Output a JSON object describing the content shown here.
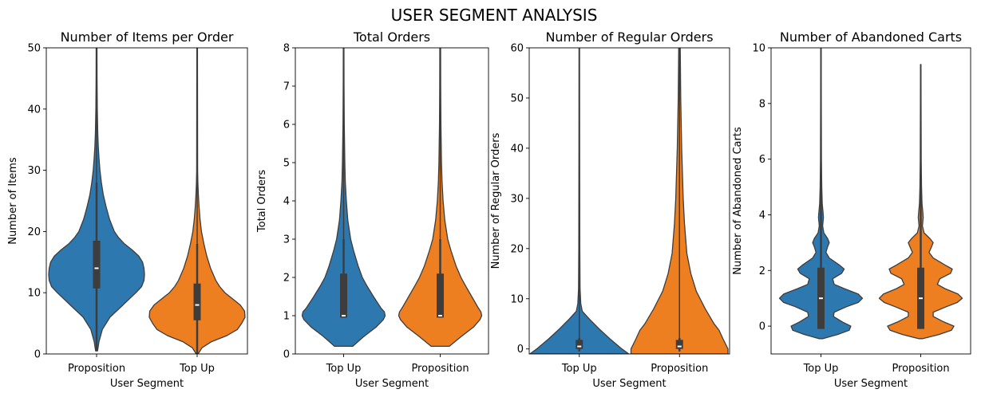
{
  "figure": {
    "title": "USER SEGMENT ANALYSIS"
  },
  "colors": {
    "blue": "#2e78b0",
    "orange": "#ee7f21",
    "edge": "#3d3d3d",
    "box": "#3d3d3d",
    "median": "#ffffff"
  },
  "chart_data": [
    {
      "type": "violin",
      "title": "Number of Items per Order",
      "xlabel": "User Segment",
      "ylabel": "Number of Items",
      "ylim": [
        0,
        50
      ],
      "yticks": [
        0,
        10,
        20,
        30,
        40,
        50
      ],
      "categories": [
        "Proposition",
        "Top Up"
      ],
      "series": [
        {
          "category": "Proposition",
          "color": "blue",
          "q1": 10.7,
          "median": 14,
          "q3": 18.5,
          "whisker_low": 0.5,
          "whisker_high": 28,
          "line_top": 50,
          "profile": [
            [
              0.5,
              0.02
            ],
            [
              2,
              0.05
            ],
            [
              4,
              0.12
            ],
            [
              6,
              0.28
            ],
            [
              8,
              0.55
            ],
            [
              10,
              0.82
            ],
            [
              11,
              0.94
            ],
            [
              12,
              0.99
            ],
            [
              13,
              1.0
            ],
            [
              14,
              0.99
            ],
            [
              15,
              0.96
            ],
            [
              16,
              0.88
            ],
            [
              17,
              0.74
            ],
            [
              18,
              0.58
            ],
            [
              19,
              0.46
            ],
            [
              20,
              0.37
            ],
            [
              22,
              0.27
            ],
            [
              24,
              0.2
            ],
            [
              26,
              0.14
            ],
            [
              28,
              0.1
            ],
            [
              30,
              0.07
            ],
            [
              32,
              0.05
            ],
            [
              34,
              0.035
            ],
            [
              36,
              0.025
            ],
            [
              40,
              0.015
            ],
            [
              45,
              0.01
            ],
            [
              50,
              0.008
            ]
          ]
        },
        {
          "category": "Top Up",
          "color": "orange",
          "q1": 5.5,
          "median": 8,
          "q3": 11.5,
          "whisker_low": 0,
          "whisker_high": 18,
          "line_top": 50,
          "profile": [
            [
              0,
              0.02
            ],
            [
              1,
              0.1
            ],
            [
              2,
              0.3
            ],
            [
              3,
              0.62
            ],
            [
              4,
              0.84
            ],
            [
              5,
              0.93
            ],
            [
              6,
              1.0
            ],
            [
              7,
              0.99
            ],
            [
              8,
              0.9
            ],
            [
              9,
              0.74
            ],
            [
              10,
              0.58
            ],
            [
              11,
              0.47
            ],
            [
              12,
              0.39
            ],
            [
              14,
              0.28
            ],
            [
              16,
              0.2
            ],
            [
              18,
              0.14
            ],
            [
              20,
              0.09
            ],
            [
              22,
              0.06
            ],
            [
              24,
              0.04
            ],
            [
              26,
              0.025
            ],
            [
              28,
              0.015
            ],
            [
              30,
              0.01
            ],
            [
              40,
              0.008
            ],
            [
              50,
              0.006
            ]
          ]
        }
      ]
    },
    {
      "type": "violin",
      "title": "Total Orders",
      "xlabel": "User Segment",
      "ylabel": "Total Orders",
      "ylim": [
        0,
        8
      ],
      "yticks": [
        0,
        1,
        2,
        3,
        4,
        5,
        6,
        7,
        8
      ],
      "categories": [
        "Top Up",
        "Proposition"
      ],
      "series": [
        {
          "category": "Top Up",
          "color": "blue",
          "q1": 0.95,
          "median": 1,
          "q3": 2.1,
          "whisker_low": 0.95,
          "whisker_high": 3,
          "line_top": 8,
          "profile": [
            [
              0.2,
              0.22
            ],
            [
              0.45,
              0.48
            ],
            [
              0.7,
              0.78
            ],
            [
              0.9,
              0.96
            ],
            [
              1.0,
              1.0
            ],
            [
              1.1,
              0.98
            ],
            [
              1.2,
              0.9
            ],
            [
              1.5,
              0.72
            ],
            [
              1.8,
              0.55
            ],
            [
              2.0,
              0.45
            ],
            [
              2.3,
              0.35
            ],
            [
              2.7,
              0.24
            ],
            [
              3.0,
              0.17
            ],
            [
              3.5,
              0.1
            ],
            [
              4.0,
              0.065
            ],
            [
              4.5,
              0.04
            ],
            [
              5.0,
              0.028
            ],
            [
              6.0,
              0.015
            ],
            [
              7.0,
              0.01
            ],
            [
              8.0,
              0.008
            ]
          ]
        },
        {
          "category": "Proposition",
          "color": "orange",
          "q1": 0.95,
          "median": 1,
          "q3": 2.1,
          "whisker_low": 0.95,
          "whisker_high": 3,
          "line_top": 8,
          "profile": [
            [
              0.2,
              0.22
            ],
            [
              0.45,
              0.5
            ],
            [
              0.7,
              0.8
            ],
            [
              0.9,
              0.96
            ],
            [
              1.0,
              1.0
            ],
            [
              1.1,
              0.98
            ],
            [
              1.2,
              0.92
            ],
            [
              1.5,
              0.76
            ],
            [
              1.8,
              0.6
            ],
            [
              2.0,
              0.5
            ],
            [
              2.3,
              0.38
            ],
            [
              2.7,
              0.26
            ],
            [
              3.0,
              0.18
            ],
            [
              3.5,
              0.11
            ],
            [
              4.0,
              0.07
            ],
            [
              4.5,
              0.045
            ],
            [
              5.0,
              0.03
            ],
            [
              6.0,
              0.018
            ],
            [
              7.0,
              0.012
            ],
            [
              8.0,
              0.009
            ]
          ]
        }
      ]
    },
    {
      "type": "violin",
      "title": "Number of Regular Orders",
      "xlabel": "User Segment",
      "ylabel": "Number of Regular Orders",
      "ylim": [
        -1,
        60
      ],
      "yticks": [
        0,
        10,
        20,
        30,
        40,
        50,
        60
      ],
      "categories": [
        "Top Up",
        "Proposition"
      ],
      "series": [
        {
          "category": "Top Up",
          "color": "blue",
          "q1": 0,
          "median": 0.5,
          "q3": 1.8,
          "whisker_low": -0.5,
          "whisker_high": 2.2,
          "line_top": 60,
          "profile": [
            [
              -1,
              1.0
            ],
            [
              0,
              0.86
            ],
            [
              2,
              0.62
            ],
            [
              4,
              0.4
            ],
            [
              6,
              0.2
            ],
            [
              7.5,
              0.06
            ],
            [
              9,
              0.03
            ],
            [
              12,
              0.015
            ],
            [
              20,
              0.01
            ],
            [
              40,
              0.008
            ],
            [
              60,
              0.006
            ]
          ]
        },
        {
          "category": "Proposition",
          "color": "orange",
          "q1": 0,
          "median": 0.5,
          "q3": 1.8,
          "whisker_low": -0.5,
          "whisker_high": 2.2,
          "line_top": 60,
          "profile": [
            [
              -1,
              0.98
            ],
            [
              0,
              0.98
            ],
            [
              2,
              0.88
            ],
            [
              3.7,
              0.8
            ],
            [
              5,
              0.7
            ],
            [
              8,
              0.52
            ],
            [
              11.5,
              0.34
            ],
            [
              15,
              0.23
            ],
            [
              19,
              0.15
            ],
            [
              25,
              0.1
            ],
            [
              30,
              0.075
            ],
            [
              40,
              0.045
            ],
            [
              50,
              0.025
            ],
            [
              60,
              0.015
            ]
          ]
        }
      ]
    },
    {
      "type": "violin",
      "title": "Number of Abandoned Carts",
      "xlabel": "User Segment",
      "ylabel": "Number of Abandoned Carts",
      "ylim": [
        -1,
        10
      ],
      "yticks": [
        0,
        2,
        4,
        6,
        8,
        10
      ],
      "categories": [
        "Top Up",
        "Proposition"
      ],
      "series": [
        {
          "category": "Top Up",
          "color": "blue",
          "q1": -0.1,
          "median": 1,
          "q3": 2.1,
          "whisker_low": -0.1,
          "whisker_high": 5,
          "line_top": 10,
          "profile": [
            [
              -0.45,
              0.05
            ],
            [
              -0.3,
              0.4
            ],
            [
              -0.15,
              0.68
            ],
            [
              0.0,
              0.72
            ],
            [
              0.15,
              0.52
            ],
            [
              0.35,
              0.3
            ],
            [
              0.5,
              0.32
            ],
            [
              0.7,
              0.62
            ],
            [
              0.85,
              0.9
            ],
            [
              1.0,
              1.0
            ],
            [
              1.15,
              0.9
            ],
            [
              1.35,
              0.56
            ],
            [
              1.5,
              0.32
            ],
            [
              1.7,
              0.28
            ],
            [
              1.9,
              0.5
            ],
            [
              2.05,
              0.56
            ],
            [
              2.2,
              0.44
            ],
            [
              2.45,
              0.2
            ],
            [
              2.65,
              0.12
            ],
            [
              2.85,
              0.16
            ],
            [
              3.0,
              0.2
            ],
            [
              3.15,
              0.16
            ],
            [
              3.35,
              0.07
            ],
            [
              3.6,
              0.04
            ],
            [
              3.9,
              0.06
            ],
            [
              4.1,
              0.05
            ],
            [
              4.4,
              0.03
            ],
            [
              5.0,
              0.02
            ],
            [
              6.0,
              0.012
            ],
            [
              8.0,
              0.008
            ],
            [
              10.0,
              0.006
            ]
          ]
        },
        {
          "category": "Proposition",
          "color": "orange",
          "q1": -0.1,
          "median": 1,
          "q3": 2.1,
          "whisker_low": -0.1,
          "whisker_high": 5.1,
          "line_top": 9.4,
          "profile": [
            [
              -0.45,
              0.05
            ],
            [
              -0.3,
              0.44
            ],
            [
              -0.15,
              0.74
            ],
            [
              0.0,
              0.8
            ],
            [
              0.15,
              0.56
            ],
            [
              0.35,
              0.3
            ],
            [
              0.5,
              0.3
            ],
            [
              0.7,
              0.62
            ],
            [
              0.85,
              0.88
            ],
            [
              1.0,
              1.0
            ],
            [
              1.15,
              0.9
            ],
            [
              1.35,
              0.58
            ],
            [
              1.5,
              0.4
            ],
            [
              1.7,
              0.46
            ],
            [
              1.9,
              0.72
            ],
            [
              2.05,
              0.76
            ],
            [
              2.2,
              0.58
            ],
            [
              2.45,
              0.3
            ],
            [
              2.65,
              0.2
            ],
            [
              2.85,
              0.26
            ],
            [
              3.0,
              0.3
            ],
            [
              3.15,
              0.22
            ],
            [
              3.35,
              0.08
            ],
            [
              3.6,
              0.04
            ],
            [
              3.9,
              0.06
            ],
            [
              4.1,
              0.05
            ],
            [
              4.4,
              0.03
            ],
            [
              5.0,
              0.02
            ],
            [
              6.0,
              0.012
            ],
            [
              8.0,
              0.008
            ],
            [
              9.4,
              0.006
            ]
          ]
        }
      ]
    }
  ]
}
